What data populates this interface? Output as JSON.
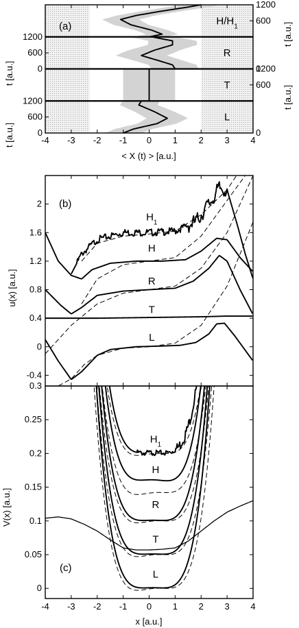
{
  "chart_data": [
    {
      "panel": "(a)",
      "type": "line",
      "xlabel": "< X (t) > [a.u.]",
      "ylabel_left": "t [a.u.]",
      "ylabel_right": "t [a.u.]",
      "xlim": [
        -4,
        4
      ],
      "xticks": [
        "-4",
        "-3",
        "-2",
        "-1",
        "0",
        "1",
        "2",
        "3",
        "4"
      ],
      "shaded_regions": [
        [
          -4,
          -2.3
        ],
        [
          2.0,
          4
        ]
      ],
      "segments": [
        {
          "name": "H/H_1",
          "label": "H/H",
          "label_sub": "1",
          "trange": [
            0,
            1200
          ],
          "mean": [
            [
              0.0,
              0
            ],
            [
              0.5,
              100
            ],
            [
              0.1,
              250
            ],
            [
              -0.7,
              450
            ],
            [
              -1.1,
              650
            ],
            [
              -0.5,
              800
            ],
            [
              0.4,
              950
            ],
            [
              1.4,
              1100
            ],
            [
              2.0,
              1200
            ]
          ],
          "band_width": [
            [
              0,
              0.6
            ],
            [
              600,
              0.7
            ],
            [
              1200,
              0.8
            ]
          ]
        },
        {
          "name": "R",
          "label": "R",
          "trange": [
            0,
            1200
          ],
          "mean": [
            [
              1.0,
              0
            ],
            [
              0.9,
              150
            ],
            [
              0.4,
              300
            ],
            [
              -0.3,
              500
            ],
            [
              0.2,
              700
            ],
            [
              0.9,
              900
            ],
            [
              0.9,
              1050
            ],
            [
              0.1,
              1200
            ]
          ],
          "band_width": [
            [
              0,
              0.9
            ],
            [
              600,
              1.0
            ],
            [
              1200,
              0.9
            ]
          ]
        },
        {
          "name": "T",
          "label": "T",
          "trange": [
            0,
            1200
          ],
          "mean": [
            [
              0.0,
              0
            ],
            [
              0.0,
              1200
            ]
          ],
          "band_width": [
            [
              0,
              1.0
            ],
            [
              1200,
              1.0
            ]
          ]
        },
        {
          "name": "L",
          "label": "L",
          "trange": [
            0,
            1200
          ],
          "mean": [
            [
              -1.0,
              0
            ],
            [
              -0.6,
              150
            ],
            [
              0.3,
              350
            ],
            [
              0.7,
              550
            ],
            [
              0.2,
              800
            ],
            [
              -0.4,
              1050
            ],
            [
              -0.3,
              1200
            ]
          ],
          "band_width": [
            [
              0,
              0.7
            ],
            [
              600,
              0.8
            ],
            [
              1200,
              0.7
            ]
          ]
        }
      ],
      "t_ticks_left": [
        {
          "segment": 1,
          "labels": [
            "0",
            "600",
            "1200"
          ]
        },
        {
          "segment": 3,
          "labels": [
            "0",
            "600",
            "1200"
          ]
        }
      ],
      "t_ticks_right": [
        {
          "segment": 0,
          "labels": [
            "600",
            "1200"
          ]
        },
        {
          "segment": 1,
          "labels": [
            "0"
          ]
        },
        {
          "segment": 2,
          "labels": [
            "600",
            "1200"
          ]
        },
        {
          "segment": 3,
          "labels": [
            "0"
          ]
        }
      ]
    },
    {
      "panel": "(b)",
      "type": "line",
      "xlabel": "",
      "ylabel": "u(x) [a.u.]",
      "xlim": [
        -4,
        4
      ],
      "ylim": [
        -0.55,
        2.4
      ],
      "yticks": [
        -0.4,
        0,
        0.4,
        0.8,
        1.2,
        1.6,
        2
      ],
      "ytick_labels": [
        "-0.4",
        "0",
        "0.4",
        "0.8",
        "1.2",
        "1.6",
        "2"
      ],
      "series": [
        {
          "name": "H_1",
          "label": "H",
          "label_sub": "1",
          "label_pos": [
            0.1,
            1.82
          ],
          "offset": 1.6,
          "noise": 0.05,
          "solid": [
            [
              -3.0,
              1.02
            ],
            [
              -2.6,
              1.3
            ],
            [
              -2.0,
              1.5
            ],
            [
              -1.0,
              1.6
            ],
            [
              0.0,
              1.6
            ],
            [
              1.0,
              1.62
            ],
            [
              1.8,
              1.75
            ],
            [
              2.4,
              2.05
            ],
            [
              2.7,
              2.22
            ],
            [
              3.0,
              2.2
            ],
            [
              3.4,
              1.7
            ],
            [
              3.7,
              1.3
            ],
            [
              4.0,
              0.95
            ]
          ],
          "dashed": [
            [
              -2.6,
              1.2
            ],
            [
              -2.0,
              1.45
            ],
            [
              -1.0,
              1.55
            ],
            [
              0.0,
              1.58
            ],
            [
              1.0,
              1.62
            ],
            [
              2.0,
              1.85
            ],
            [
              3.0,
              2.2
            ],
            [
              4.0,
              2.75
            ]
          ]
        },
        {
          "name": "H",
          "label": "H",
          "label_pos": [
            0.1,
            1.38
          ],
          "offset": 1.2,
          "noise": 0,
          "solid": [
            [
              -4.0,
              1.6
            ],
            [
              -3.5,
              1.2
            ],
            [
              -3.0,
              1.0
            ],
            [
              -2.6,
              0.95
            ],
            [
              -2.2,
              1.08
            ],
            [
              -1.5,
              1.17
            ],
            [
              -0.5,
              1.2
            ],
            [
              0.5,
              1.2
            ],
            [
              1.4,
              1.22
            ],
            [
              2.0,
              1.34
            ],
            [
              2.6,
              1.52
            ],
            [
              3.0,
              1.5
            ],
            [
              3.5,
              1.25
            ],
            [
              4.0,
              1.05
            ]
          ],
          "dashed": [
            [
              -2.6,
              0.6
            ],
            [
              -2.0,
              0.95
            ],
            [
              -1.0,
              1.15
            ],
            [
              0.0,
              1.2
            ],
            [
              1.0,
              1.25
            ],
            [
              2.0,
              1.55
            ],
            [
              3.0,
              2.05
            ],
            [
              4.0,
              2.55
            ]
          ]
        },
        {
          "name": "R",
          "label": "R",
          "label_pos": [
            0.1,
            0.92
          ],
          "offset": 0.8,
          "noise": 0,
          "solid": [
            [
              -4.0,
              0.8
            ],
            [
              -3.4,
              0.58
            ],
            [
              -3.0,
              0.46
            ],
            [
              -2.6,
              0.55
            ],
            [
              -2.0,
              0.72
            ],
            [
              -1.0,
              0.78
            ],
            [
              0.0,
              0.8
            ],
            [
              1.0,
              0.82
            ],
            [
              1.7,
              0.92
            ],
            [
              2.3,
              1.1
            ],
            [
              2.7,
              1.28
            ],
            [
              3.0,
              1.2
            ],
            [
              3.5,
              0.8
            ],
            [
              4.0,
              0.45
            ]
          ],
          "dashed": [
            [
              -4.0,
              -0.1
            ],
            [
              -3.0,
              0.3
            ],
            [
              -2.0,
              0.6
            ],
            [
              -1.0,
              0.75
            ],
            [
              0.0,
              0.8
            ],
            [
              1.0,
              0.85
            ],
            [
              2.0,
              1.1
            ],
            [
              3.0,
              1.6
            ],
            [
              4.0,
              2.4
            ]
          ]
        },
        {
          "name": "T",
          "label": "T",
          "label_pos": [
            0.1,
            0.52
          ],
          "offset": 0.4,
          "noise": 0,
          "solid": [
            [
              -4.0,
              0.4
            ],
            [
              -2.0,
              0.4
            ],
            [
              0.0,
              0.41
            ],
            [
              2.0,
              0.42
            ],
            [
              3.0,
              0.43
            ],
            [
              4.0,
              0.43
            ]
          ],
          "dashed": []
        },
        {
          "name": "L",
          "label": "L",
          "label_pos": [
            0.1,
            0.13
          ],
          "offset": 0.0,
          "noise": 0,
          "solid": [
            [
              -4.0,
              0.1
            ],
            [
              -3.5,
              -0.2
            ],
            [
              -3.0,
              -0.46
            ],
            [
              -2.6,
              -0.35
            ],
            [
              -2.0,
              -0.12
            ],
            [
              -1.5,
              -0.04
            ],
            [
              -0.5,
              0.0
            ],
            [
              0.5,
              0.01
            ],
            [
              1.2,
              0.02
            ],
            [
              1.8,
              0.06
            ],
            [
              2.3,
              0.18
            ],
            [
              2.6,
              0.32
            ],
            [
              2.9,
              0.33
            ],
            [
              3.3,
              0.15
            ],
            [
              4.0,
              -0.2
            ]
          ],
          "dashed": [
            [
              -4.0,
              -0.65
            ],
            [
              -3.0,
              -0.45
            ],
            [
              -2.5,
              -0.25
            ],
            [
              -2.0,
              -0.12
            ],
            [
              -1.0,
              -0.02
            ],
            [
              0.0,
              0.0
            ],
            [
              1.0,
              0.05
            ],
            [
              2.0,
              0.3
            ],
            [
              3.0,
              0.85
            ],
            [
              4.0,
              1.75
            ]
          ]
        }
      ]
    },
    {
      "panel": "(c)",
      "type": "line",
      "xlabel": "x [a.u.]",
      "ylabel": "V(x) [a.u.]",
      "xlim": [
        -4,
        4
      ],
      "ylim": [
        -0.015,
        0.3
      ],
      "xticks": [
        "-4",
        "-3",
        "-2",
        "-1",
        "0",
        "1",
        "2",
        "3",
        "4"
      ],
      "yticks": [
        0,
        0.05,
        0.1,
        0.15,
        0.2,
        0.25,
        0.3
      ],
      "ytick_labels": [
        "0",
        "0.05",
        "0.1",
        "0.15",
        "0.2",
        "0.25",
        "0.3"
      ],
      "series": [
        {
          "name": "H_1",
          "label": "H",
          "label_sub": "1",
          "label_pos": [
            0.25,
            0.221
          ],
          "offset": 0.2,
          "noise": 0.004,
          "noise_range": [
            -0.5,
            1.8
          ]
        },
        {
          "name": "H",
          "label": "H",
          "label_pos": [
            0.25,
            0.176
          ],
          "offset": 0.15,
          "noise": 0,
          "solid_extra_depth": 0.01
        },
        {
          "name": "R",
          "label": "R",
          "label_pos": [
            0.25,
            0.124
          ],
          "offset": 0.1,
          "noise": 0
        },
        {
          "name": "T",
          "label": "T",
          "label_pos": [
            0.25,
            0.073
          ],
          "offset": 0.05,
          "noise": 0
        },
        {
          "name": "L",
          "label": "L",
          "label_pos": [
            0.25,
            0.021
          ],
          "offset": 0.0,
          "noise": 0
        }
      ],
      "wide_well": [
        [
          -4.0,
          0.104
        ],
        [
          -3.5,
          0.106
        ],
        [
          -3.0,
          0.103
        ],
        [
          -2.5,
          0.095
        ],
        [
          -2.0,
          0.085
        ],
        [
          -1.5,
          0.072
        ],
        [
          -1.0,
          0.06
        ],
        [
          -0.5,
          0.057
        ],
        [
          0.0,
          0.057
        ],
        [
          0.5,
          0.058
        ],
        [
          1.0,
          0.06
        ],
        [
          1.5,
          0.07
        ],
        [
          2.0,
          0.085
        ],
        [
          2.5,
          0.1
        ],
        [
          3.0,
          0.113
        ],
        [
          3.5,
          0.122
        ],
        [
          4.0,
          0.13
        ]
      ]
    }
  ]
}
